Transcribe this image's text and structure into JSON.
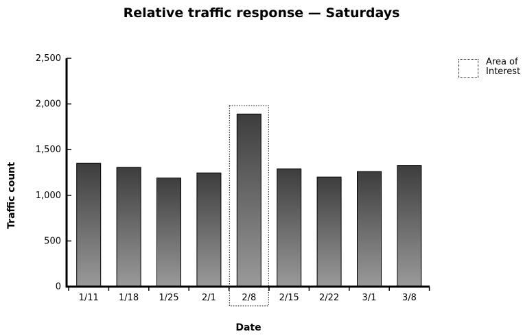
{
  "chart_data": {
    "type": "bar",
    "title": "Relative traffic response — Saturdays",
    "xlabel": "Date",
    "ylabel": "Traffic count",
    "categories": [
      "1/11",
      "1/18",
      "1/25",
      "2/1",
      "2/8",
      "2/15",
      "2/22",
      "3/1",
      "3/8"
    ],
    "values": [
      1350,
      1305,
      1190,
      1245,
      1890,
      1290,
      1200,
      1260,
      1325
    ],
    "ylim": [
      0,
      2500
    ],
    "yticks": [
      0,
      500,
      1000,
      1500,
      2000,
      2500
    ],
    "ytick_labels": [
      "0",
      "500",
      "1,000",
      "1,500",
      "2,000",
      "2,500"
    ],
    "highlight_category": "2/8",
    "legend": {
      "label": "Area of Interest",
      "placement": "top-right"
    },
    "grid": false,
    "bar_color_top": "#3d3d3d",
    "bar_color_bottom": "#9a9a9a"
  }
}
